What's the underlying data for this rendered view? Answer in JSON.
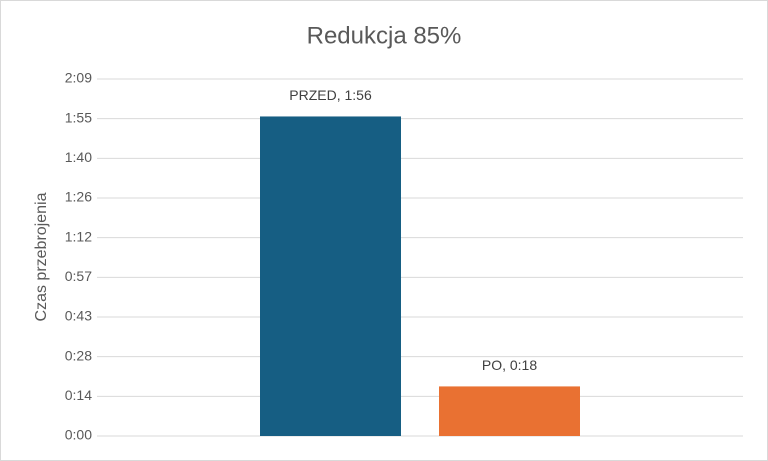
{
  "chart_data": {
    "type": "bar",
    "title": "Redukcja 85%",
    "y_label": "Czas przebrojenia",
    "categories": [
      null,
      null
    ],
    "values": [
      116,
      18
    ],
    "value_labels": [
      "PRZED, 1:56",
      "PO, 0:18"
    ],
    "colors": [
      "#165e83",
      "#e97132"
    ],
    "ylim": [
      0,
      129.6
    ],
    "yticks": [
      {
        "value": 0,
        "label": "0:00"
      },
      {
        "value": 14.4,
        "label": "0:14"
      },
      {
        "value": 28.8,
        "label": "0:28"
      },
      {
        "value": 43.2,
        "label": "0:43"
      },
      {
        "value": 57.6,
        "label": "0:57"
      },
      {
        "value": 72,
        "label": "1:12"
      },
      {
        "value": 86.4,
        "label": "1:26"
      },
      {
        "value": 100.8,
        "label": "1:40"
      },
      {
        "value": 115.2,
        "label": "1:55"
      },
      {
        "value": 129.6,
        "label": "2:09"
      }
    ],
    "grid": true
  }
}
